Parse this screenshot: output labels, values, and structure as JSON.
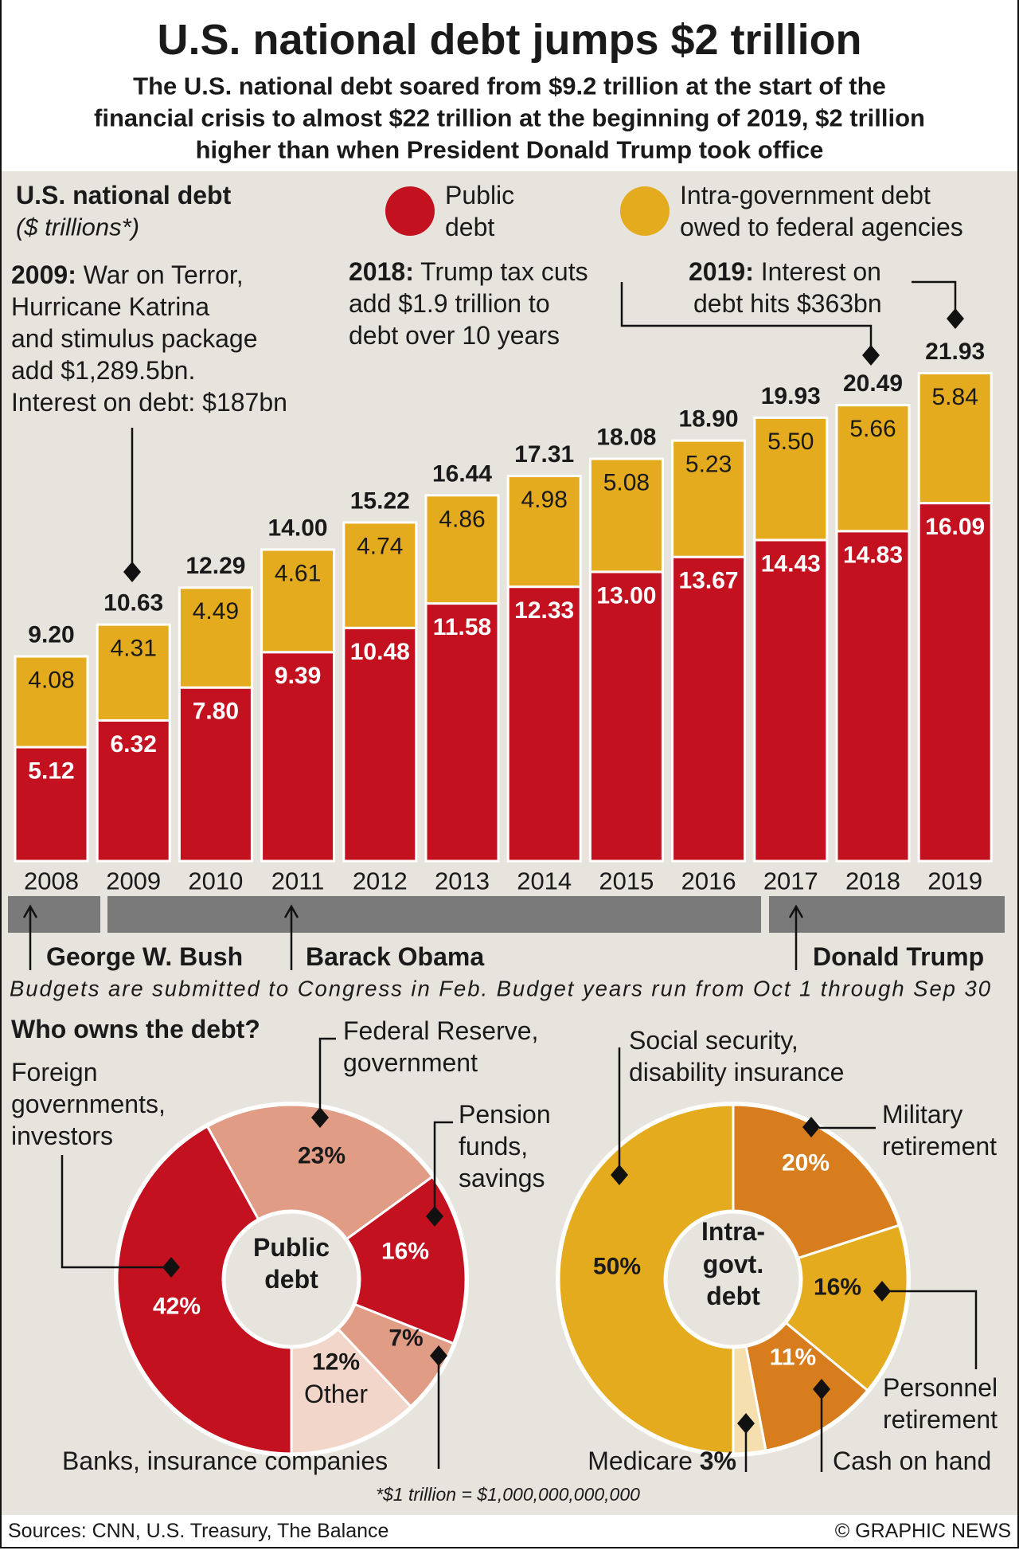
{
  "header": {
    "title": "U.S. national debt jumps $2 trillion",
    "subtitle": [
      "The U.S. national debt soared from $9.2 trillion at the start of the",
      "financial crisis to almost $22 trillion at the beginning of 2019, $2 trillion",
      "higher than when President Donald Trump took office"
    ]
  },
  "chart_data": [
    {
      "type": "bar",
      "stacked": true,
      "title": "U.S. national debt",
      "ylabel": "($ trillions*)",
      "categories": [
        "2008",
        "2009",
        "2010",
        "2011",
        "2012",
        "2013",
        "2014",
        "2015",
        "2016",
        "2017",
        "2018",
        "2019"
      ],
      "series": [
        {
          "name": "Public debt",
          "color": "#c3111f",
          "values": [
            5.12,
            6.32,
            7.8,
            9.39,
            10.48,
            11.58,
            12.33,
            13.0,
            13.67,
            14.43,
            14.83,
            16.09
          ],
          "labels": [
            "5.12",
            "6.32",
            "7.80",
            "9.39",
            "10.48",
            "11.58",
            "12.33",
            "13.00",
            "13.67",
            "14.43",
            "14.83",
            "16.09"
          ]
        },
        {
          "name": "Intra-government debt owed to federal agencies",
          "color": "#e5ab1f",
          "values": [
            4.08,
            4.31,
            4.49,
            4.61,
            4.74,
            4.86,
            4.98,
            5.08,
            5.23,
            5.5,
            5.66,
            5.84
          ],
          "labels": [
            "4.08",
            "4.31",
            "4.49",
            "4.61",
            "4.74",
            "4.86",
            "4.98",
            "5.08",
            "5.23",
            "5.50",
            "5.66",
            "5.84"
          ]
        }
      ],
      "totals": [
        "9.20",
        "10.63",
        "12.29",
        "14.00",
        "15.22",
        "16.44",
        "17.31",
        "18.08",
        "18.90",
        "19.93",
        "20.49",
        "21.93"
      ],
      "legend": {
        "public": [
          "Public",
          "debt"
        ],
        "intra": [
          "Intra-government debt",
          "owed to federal agencies"
        ]
      },
      "grid": false
    },
    {
      "type": "pie",
      "title": "Who owns the debt?",
      "center_label": [
        "Public",
        "debt"
      ],
      "slices": [
        {
          "label": "Foreign governments, investors",
          "value": 42,
          "text": "42%",
          "color": "#c3111f"
        },
        {
          "label": "Federal Reserve, government",
          "value": 23,
          "text": "23%",
          "color": "#e09c85"
        },
        {
          "label": "Pension funds, savings",
          "value": 16,
          "text": "16%",
          "color": "#c3111f"
        },
        {
          "label": "Banks, insurance companies",
          "value": 7,
          "text": "7%",
          "color": "#e09c85"
        },
        {
          "label": "Other",
          "value": 12,
          "text": "12%",
          "color": "#f2d6c9"
        }
      ]
    },
    {
      "type": "pie",
      "center_label": [
        "Intra-",
        "govt.",
        "debt"
      ],
      "slices": [
        {
          "label": "Social security, disability insurance",
          "value": 50,
          "text": "50%",
          "color": "#e5ab1f"
        },
        {
          "label": "Military retirement",
          "value": 20,
          "text": "20%",
          "color": "#d77d1d"
        },
        {
          "label": "Personnel retirement",
          "value": 16,
          "text": "16%",
          "color": "#e5ab1f"
        },
        {
          "label": "Cash on hand",
          "value": 11,
          "text": "11%",
          "color": "#d77d1d"
        },
        {
          "label": "Medicare",
          "value": 3,
          "text": "3%",
          "color": "#f5dfae"
        }
      ]
    }
  ],
  "annotations": {
    "a2009": {
      "year": "2009:",
      "lines": [
        " War on Terror,",
        "Hurricane Katrina",
        "and stimulus package",
        "add $1,289.5bn.",
        "Interest on debt: $187bn"
      ]
    },
    "a2018": {
      "year": "2018:",
      "lines": [
        " Trump tax cuts",
        "add $1.9 trillion to",
        "debt over 10 years"
      ]
    },
    "a2019": {
      "year": "2019:",
      "lines": [
        " Interest on",
        "debt hits $363bn"
      ]
    }
  },
  "presidents": [
    "George W. Bush",
    "Barack Obama",
    "Donald Trump"
  ],
  "budget_note": "Budgets are submitted to Congress in Feb. Budget years run from Oct 1 through Sep 30",
  "pie_labels": {
    "fed": [
      "Federal Reserve,",
      "government"
    ],
    "foreign": [
      "Foreign",
      "governments,",
      "investors"
    ],
    "pension": [
      "Pension",
      "funds,",
      "savings"
    ],
    "banks": "Banks, insurance companies",
    "other": "Other",
    "social": [
      "Social security,",
      "disability insurance"
    ],
    "military": [
      "Military",
      "retirement"
    ],
    "personnel": [
      "Personnel",
      "retirement"
    ],
    "cash": "Cash on hand",
    "medicare": "Medicare",
    "medicare_pct": "3%"
  },
  "footnote": "*$1 trillion = $1,000,000,000,000",
  "footer": {
    "sources": "Sources: CNN, U.S. Treasury, The Balance",
    "credit": "© GRAPHIC NEWS"
  }
}
